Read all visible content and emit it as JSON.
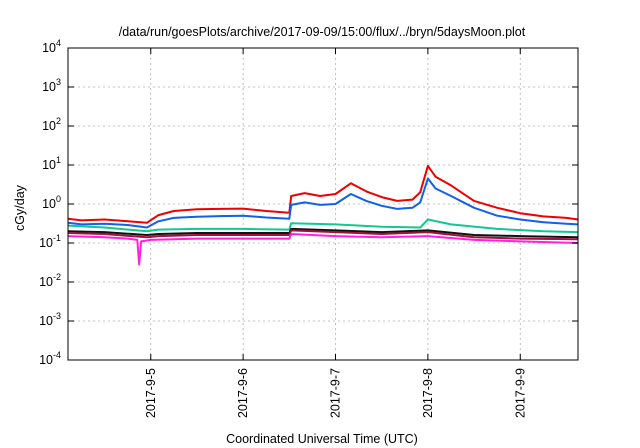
{
  "chart_data": {
    "type": "line",
    "title": "/data/run/goesPlots/archive/2017-09-09/15:00/flux/../bryn/5daysMoon.plot",
    "xlabel": "Coordinated Universal Time (UTC)",
    "ylabel": "cGy/day",
    "y_scale": "log",
    "ylim": [
      0.0001,
      10000
    ],
    "xlim": [
      "2017-09-04T02:30",
      "2017-09-09T15:00"
    ],
    "x_ticks": [
      "2017-09-05",
      "2017-09-06",
      "2017-09-07",
      "2017-09-08",
      "2017-09-09"
    ],
    "x_tick_labels": [
      "2017-9-5",
      "2017-9-6",
      "2017-9-7",
      "2017-9-8",
      "2017-9-9"
    ],
    "y_ticks": [
      0.0001,
      0.001,
      0.01,
      0.1,
      1,
      10,
      100,
      1000,
      10000
    ],
    "y_tick_labels": [
      {
        "base": "10",
        "exp": "-4"
      },
      {
        "base": "10",
        "exp": "-3"
      },
      {
        "base": "10",
        "exp": "-2"
      },
      {
        "base": "10",
        "exp": "-1"
      },
      {
        "base": "10",
        "exp": "0"
      },
      {
        "base": "10",
        "exp": "1"
      },
      {
        "base": "10",
        "exp": "2"
      },
      {
        "base": "10",
        "exp": "3"
      },
      {
        "base": "10",
        "exp": "4"
      }
    ],
    "grid": true,
    "legend": "none",
    "series": [
      {
        "color": "#ee0000",
        "points": [
          [
            "2017-09-04T02:30",
            0.42
          ],
          [
            "2017-09-04T06:00",
            0.38
          ],
          [
            "2017-09-04T12:00",
            0.4
          ],
          [
            "2017-09-04T18:00",
            0.36
          ],
          [
            "2017-09-04T23:00",
            0.33
          ],
          [
            "2017-09-05T02:00",
            0.52
          ],
          [
            "2017-09-05T06:00",
            0.66
          ],
          [
            "2017-09-05T12:00",
            0.73
          ],
          [
            "2017-09-05T18:00",
            0.75
          ],
          [
            "2017-09-06T00:00",
            0.76
          ],
          [
            "2017-09-06T06:00",
            0.66
          ],
          [
            "2017-09-06T12:00",
            0.6
          ],
          [
            "2017-09-06T12:30",
            1.6
          ],
          [
            "2017-09-06T16:00",
            1.9
          ],
          [
            "2017-09-06T20:00",
            1.6
          ],
          [
            "2017-09-07T00:00",
            1.8
          ],
          [
            "2017-09-07T04:00",
            3.4
          ],
          [
            "2017-09-07T08:00",
            2.1
          ],
          [
            "2017-09-07T12:00",
            1.5
          ],
          [
            "2017-09-07T16:00",
            1.2
          ],
          [
            "2017-09-07T20:00",
            1.3
          ],
          [
            "2017-09-07T22:00",
            2.0
          ],
          [
            "2017-09-08T00:00",
            9.5
          ],
          [
            "2017-09-08T02:00",
            5.0
          ],
          [
            "2017-09-08T06:00",
            3.0
          ],
          [
            "2017-09-08T12:00",
            1.2
          ],
          [
            "2017-09-08T18:00",
            0.8
          ],
          [
            "2017-09-09T00:00",
            0.58
          ],
          [
            "2017-09-09T06:00",
            0.48
          ],
          [
            "2017-09-09T12:00",
            0.44
          ],
          [
            "2017-09-09T15:00",
            0.4
          ]
        ]
      },
      {
        "color": "#1060e8",
        "points": [
          [
            "2017-09-04T02:30",
            0.33
          ],
          [
            "2017-09-04T06:00",
            0.3
          ],
          [
            "2017-09-04T12:00",
            0.31
          ],
          [
            "2017-09-04T18:00",
            0.29
          ],
          [
            "2017-09-04T23:00",
            0.25
          ],
          [
            "2017-09-05T02:00",
            0.36
          ],
          [
            "2017-09-05T06:00",
            0.44
          ],
          [
            "2017-09-05T12:00",
            0.47
          ],
          [
            "2017-09-05T18:00",
            0.49
          ],
          [
            "2017-09-06T00:00",
            0.5
          ],
          [
            "2017-09-06T06:00",
            0.45
          ],
          [
            "2017-09-06T12:00",
            0.42
          ],
          [
            "2017-09-06T12:30",
            0.95
          ],
          [
            "2017-09-06T16:00",
            1.1
          ],
          [
            "2017-09-06T20:00",
            0.95
          ],
          [
            "2017-09-07T00:00",
            1.0
          ],
          [
            "2017-09-07T04:00",
            1.8
          ],
          [
            "2017-09-07T08:00",
            1.2
          ],
          [
            "2017-09-07T12:00",
            0.9
          ],
          [
            "2017-09-07T16:00",
            0.75
          ],
          [
            "2017-09-07T20:00",
            0.8
          ],
          [
            "2017-09-07T22:00",
            1.1
          ],
          [
            "2017-09-08T00:00",
            4.5
          ],
          [
            "2017-09-08T02:00",
            2.5
          ],
          [
            "2017-09-08T06:00",
            1.6
          ],
          [
            "2017-09-08T12:00",
            0.8
          ],
          [
            "2017-09-08T18:00",
            0.5
          ],
          [
            "2017-09-09T00:00",
            0.4
          ],
          [
            "2017-09-09T06:00",
            0.34
          ],
          [
            "2017-09-09T12:00",
            0.31
          ],
          [
            "2017-09-09T15:00",
            0.3
          ]
        ]
      },
      {
        "color": "#10c890",
        "points": [
          [
            "2017-09-04T02:30",
            0.28
          ],
          [
            "2017-09-04T12:00",
            0.25
          ],
          [
            "2017-09-04T23:00",
            0.2
          ],
          [
            "2017-09-05T02:00",
            0.22
          ],
          [
            "2017-09-05T12:00",
            0.23
          ],
          [
            "2017-09-06T00:00",
            0.23
          ],
          [
            "2017-09-06T12:00",
            0.22
          ],
          [
            "2017-09-06T12:30",
            0.32
          ],
          [
            "2017-09-07T00:00",
            0.3
          ],
          [
            "2017-09-07T12:00",
            0.26
          ],
          [
            "2017-09-07T22:00",
            0.25
          ],
          [
            "2017-09-08T00:00",
            0.4
          ],
          [
            "2017-09-08T06:00",
            0.3
          ],
          [
            "2017-09-08T18:00",
            0.23
          ],
          [
            "2017-09-09T06:00",
            0.2
          ],
          [
            "2017-09-09T15:00",
            0.19
          ]
        ]
      },
      {
        "color": "#111111",
        "points": [
          [
            "2017-09-04T02:30",
            0.2
          ],
          [
            "2017-09-04T12:00",
            0.19
          ],
          [
            "2017-09-04T23:00",
            0.16
          ],
          [
            "2017-09-05T02:00",
            0.17
          ],
          [
            "2017-09-05T12:00",
            0.18
          ],
          [
            "2017-09-06T00:00",
            0.18
          ],
          [
            "2017-09-06T12:00",
            0.18
          ],
          [
            "2017-09-06T12:30",
            0.23
          ],
          [
            "2017-09-07T00:00",
            0.21
          ],
          [
            "2017-09-07T12:00",
            0.19
          ],
          [
            "2017-09-08T00:00",
            0.21
          ],
          [
            "2017-09-08T12:00",
            0.16
          ],
          [
            "2017-09-09T00:00",
            0.15
          ],
          [
            "2017-09-09T15:00",
            0.14
          ]
        ]
      },
      {
        "color": "#a01040",
        "points": [
          [
            "2017-09-04T02:30",
            0.18
          ],
          [
            "2017-09-04T12:00",
            0.17
          ],
          [
            "2017-09-04T23:00",
            0.14
          ],
          [
            "2017-09-05T02:00",
            0.15
          ],
          [
            "2017-09-05T12:00",
            0.16
          ],
          [
            "2017-09-06T00:00",
            0.16
          ],
          [
            "2017-09-06T12:00",
            0.16
          ],
          [
            "2017-09-06T12:30",
            0.21
          ],
          [
            "2017-09-07T00:00",
            0.19
          ],
          [
            "2017-09-07T12:00",
            0.17
          ],
          [
            "2017-09-08T00:00",
            0.19
          ],
          [
            "2017-09-08T12:00",
            0.14
          ],
          [
            "2017-09-09T00:00",
            0.13
          ],
          [
            "2017-09-09T15:00",
            0.125
          ]
        ]
      },
      {
        "color": "#ff20e0",
        "points": [
          [
            "2017-09-04T02:30",
            0.15
          ],
          [
            "2017-09-04T12:00",
            0.14
          ],
          [
            "2017-09-04T18:00",
            0.13
          ],
          [
            "2017-09-04T20:30",
            0.12
          ],
          [
            "2017-09-04T21:00",
            0.028
          ],
          [
            "2017-09-04T21:30",
            0.11
          ],
          [
            "2017-09-05T00:00",
            0.12
          ],
          [
            "2017-09-05T12:00",
            0.13
          ],
          [
            "2017-09-06T00:00",
            0.13
          ],
          [
            "2017-09-06T12:00",
            0.13
          ],
          [
            "2017-09-06T12:30",
            0.17
          ],
          [
            "2017-09-07T00:00",
            0.15
          ],
          [
            "2017-09-07T12:00",
            0.14
          ],
          [
            "2017-09-08T00:00",
            0.15
          ],
          [
            "2017-09-08T12:00",
            0.12
          ],
          [
            "2017-09-09T00:00",
            0.11
          ],
          [
            "2017-09-09T15:00",
            0.1
          ]
        ]
      }
    ]
  }
}
